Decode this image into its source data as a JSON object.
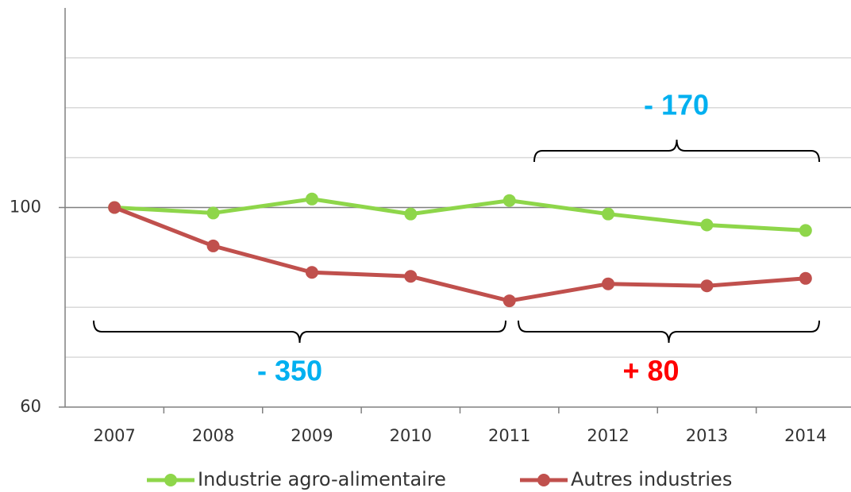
{
  "chart_data": {
    "type": "line",
    "categories": [
      "2007",
      "2008",
      "2009",
      "2010",
      "2011",
      "2012",
      "2013",
      "2014"
    ],
    "series": [
      {
        "name": "Industrie agro-alimentaire",
        "color": "#8ed64a",
        "values": [
          100,
          98.9,
          101.7,
          98.7,
          101.4,
          98.7,
          96.5,
          95.4
        ]
      },
      {
        "name": "Autres industries",
        "color": "#c0504d",
        "values": [
          100,
          92.3,
          87.0,
          86.2,
          81.3,
          84.7,
          84.3,
          85.8
        ]
      }
    ],
    "ylim": [
      60,
      140
    ],
    "yticks": [
      60,
      100
    ],
    "gridlines": [
      70,
      80,
      90,
      110,
      120,
      130
    ],
    "grid": true,
    "legend": "bottom",
    "annotations": [
      {
        "text": "- 170",
        "color": "#00b0f0"
      },
      {
        "text": "- 350",
        "color": "#00b0f0"
      },
      {
        "text": "+ 80",
        "color": "#ff0000"
      }
    ]
  }
}
